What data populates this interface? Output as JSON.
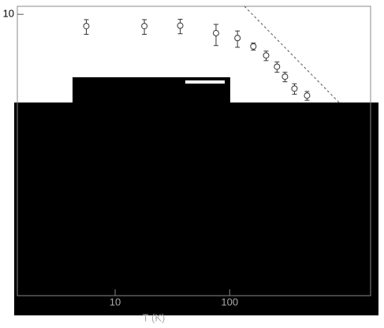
{
  "chart_data": {
    "type": "scatter",
    "x": [
      5.6,
      18,
      37,
      76,
      117,
      161,
      208,
      259,
      304,
      368,
      474
    ],
    "values": [
      6.8,
      6.8,
      6.9,
      5.4,
      4.6,
      3.5,
      2.6,
      1.8,
      1.3,
      0.88,
      0.7
    ],
    "errors": [
      1.6,
      1.6,
      1.6,
      1.8,
      1.2,
      0.4,
      0.4,
      0.3,
      0.2,
      0.15,
      0.1
    ],
    "color": "#333333",
    "xlim": [
      1.4,
      1700
    ],
    "ylim": [
      0.001,
      13
    ],
    "xticks": [
      10,
      100
    ],
    "yticks": [
      10
    ],
    "xscale": "log",
    "yscale": "log",
    "xlabel": "T (K)"
  }
}
